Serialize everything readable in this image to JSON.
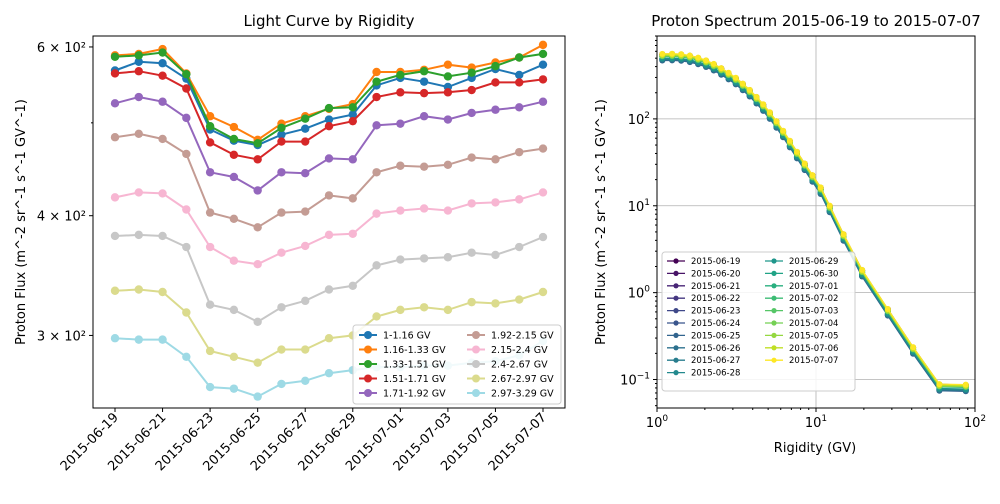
{
  "chart_data": [
    {
      "type": "line",
      "title": "Light Curve by Rigidity",
      "xlabel": "",
      "ylabel": "Proton Flux (m^-2 sr^-1 s^-1 GV^-1)",
      "yscale": "log",
      "ylim": [
        252,
        616
      ],
      "ytick_labels": [
        {
          "value": 300,
          "label": "3 × 10²"
        },
        {
          "value": 400,
          "label": "4 × 10²"
        },
        {
          "value": 600,
          "label": "6 × 10²"
        }
      ],
      "xtick_labels": [
        "2015-06-19",
        "2015-06-21",
        "2015-06-23",
        "2015-06-25",
        "2015-06-27",
        "2015-06-29",
        "2015-07-01",
        "2015-07-03",
        "2015-07-05",
        "2015-07-07"
      ],
      "x": [
        "2015-06-19",
        "2015-06-20",
        "2015-06-21",
        "2015-06-22",
        "2015-06-23",
        "2015-06-24",
        "2015-06-25",
        "2015-06-26",
        "2015-06-27",
        "2015-06-28",
        "2015-06-29",
        "2015-06-30",
        "2015-07-01",
        "2015-07-02",
        "2015-07-03",
        "2015-07-04",
        "2015-07-05",
        "2015-07-06",
        "2015-07-07"
      ],
      "legend": "lower-right",
      "series": [
        {
          "name": "1-1.16 GV",
          "color": "#1f77b4",
          "values": [
            567,
            579,
            577,
            556,
            492,
            479,
            474,
            486,
            493,
            504,
            510,
            547,
            557,
            552,
            545,
            557,
            569,
            561,
            575
          ]
        },
        {
          "name": "1.16-1.33 GV",
          "color": "#ff7f0e",
          "values": [
            588,
            590,
            597,
            563,
            508,
            495,
            480,
            499,
            508,
            517,
            523,
            565,
            565,
            568,
            575,
            571,
            578,
            585,
            603
          ]
        },
        {
          "name": "1.33-1.51 GV",
          "color": "#2ca02c",
          "values": [
            586,
            588,
            592,
            562,
            496,
            481,
            476,
            494,
            505,
            518,
            519,
            552,
            561,
            566,
            559,
            564,
            573,
            585,
            590
          ]
        },
        {
          "name": "1.51-1.71 GV",
          "color": "#d62728",
          "values": [
            563,
            566,
            560,
            543,
            477,
            463,
            458,
            478,
            478,
            496,
            502,
            532,
            538,
            537,
            538,
            541,
            551,
            551,
            555
          ]
        },
        {
          "name": "1.71-1.92 GV",
          "color": "#9467bd",
          "values": [
            524,
            532,
            526,
            506,
            444,
            439,
            425,
            444,
            443,
            459,
            458,
            497,
            499,
            508,
            504,
            512,
            516,
            519,
            526
          ]
        },
        {
          "name": "1.92-2.15 GV",
          "color": "#c49c94",
          "values": [
            483,
            487,
            481,
            464,
            403,
            397,
            389,
            403,
            404,
            420,
            417,
            444,
            451,
            450,
            452,
            460,
            458,
            466,
            470
          ]
        },
        {
          "name": "2.15-2.4 GV",
          "color": "#f7b6d2",
          "values": [
            418,
            423,
            422,
            406,
            371,
            359,
            356,
            366,
            372,
            382,
            383,
            402,
            405,
            407,
            405,
            412,
            413,
            416,
            423
          ]
        },
        {
          "name": "2.4-2.67 GV",
          "color": "#c7c7c7",
          "values": [
            381,
            382,
            381,
            371,
            323,
            319,
            310,
            321,
            326,
            335,
            338,
            355,
            360,
            361,
            362,
            366,
            364,
            371,
            380
          ]
        },
        {
          "name": "2.67-2.97 GV",
          "color": "#dbdb8d",
          "values": [
            334,
            335,
            333,
            317,
            289,
            285,
            281,
            290,
            290,
            298,
            300,
            314,
            319,
            321,
            319,
            325,
            324,
            327,
            333
          ]
        },
        {
          "name": "2.97-3.29 GV",
          "color": "#9edae5",
          "values": [
            298,
            297,
            297,
            285,
            265,
            264,
            259,
            267,
            269,
            274,
            276,
            278,
            278,
            279,
            279,
            281,
            282,
            286,
            296
          ]
        }
      ]
    },
    {
      "type": "line",
      "title": "Proton Spectrum 2015-06-19 to 2015-07-07",
      "xlabel": "Rigidity (GV)",
      "ylabel": "Proton Flux (m^-2 sr^-1 s^-1 GV^-1)",
      "xscale": "log",
      "yscale": "log",
      "xlim": [
        1,
        100
      ],
      "ylim": [
        0.047,
        900
      ],
      "grid": true,
      "xtick_labels": [
        {
          "value": 1,
          "base": "10",
          "exp": "0"
        },
        {
          "value": 10,
          "base": "10",
          "exp": "1"
        },
        {
          "value": 100,
          "base": "10",
          "exp": "2"
        }
      ],
      "ytick_labels": [
        {
          "value": 0.1,
          "base": "10",
          "exp": "−1"
        },
        {
          "value": 1,
          "base": "10",
          "exp": "0"
        },
        {
          "value": 10,
          "base": "10",
          "exp": "1"
        },
        {
          "value": 100,
          "base": "10",
          "exp": "2"
        }
      ],
      "x": [
        1.08,
        1.245,
        1.42,
        1.61,
        1.815,
        2.035,
        2.275,
        2.535,
        2.82,
        3.13,
        3.465,
        3.83,
        4.225,
        4.655,
        5.125,
        5.64,
        6.21,
        6.85,
        7.59,
        8.49,
        9.5,
        10.7,
        12.2,
        14.9,
        19.5,
        28.3,
        40.8,
        59.7,
        87.5
      ],
      "base_values": [
        475,
        477,
        471,
        455,
        430,
        400,
        364,
        326,
        288,
        252,
        216,
        183,
        152,
        125,
        101,
        80,
        62,
        47.5,
        35.5,
        26,
        19.1,
        13.8,
        8.5,
        4.0,
        1.55,
        0.55,
        0.2,
        0.075,
        0.074
      ],
      "legend": "lower-left",
      "legend_ncols": 2,
      "series": [
        {
          "name": "2015-06-19",
          "color": "#440154",
          "scale": 1.16
        },
        {
          "name": "2015-06-20",
          "color": "#481467",
          "scale": 1.17
        },
        {
          "name": "2015-06-21",
          "color": "#482576",
          "scale": 1.17
        },
        {
          "name": "2015-06-22",
          "color": "#453781",
          "scale": 1.11
        },
        {
          "name": "2015-06-23",
          "color": "#3f4889",
          "scale": 1.02
        },
        {
          "name": "2015-06-24",
          "color": "#39558c",
          "scale": 1.0
        },
        {
          "name": "2015-06-25",
          "color": "#32648e",
          "scale": 0.99
        },
        {
          "name": "2015-06-26",
          "color": "#2d718e",
          "scale": 1.01
        },
        {
          "name": "2015-06-27",
          "color": "#287d8e",
          "scale": 1.02
        },
        {
          "name": "2015-06-28",
          "color": "#23898e",
          "scale": 1.04
        },
        {
          "name": "2015-06-29",
          "color": "#1f968b",
          "scale": 1.05
        },
        {
          "name": "2015-06-30",
          "color": "#20a386",
          "scale": 1.1
        },
        {
          "name": "2015-07-01",
          "color": "#29af7f",
          "scale": 1.11
        },
        {
          "name": "2015-07-02",
          "color": "#3dbc74",
          "scale": 1.11
        },
        {
          "name": "2015-07-03",
          "color": "#56c667",
          "scale": 1.11
        },
        {
          "name": "2015-07-04",
          "color": "#75d054",
          "scale": 1.12
        },
        {
          "name": "2015-07-05",
          "color": "#95d840",
          "scale": 1.13
        },
        {
          "name": "2015-07-06",
          "color": "#c0df25",
          "scale": 1.15
        },
        {
          "name": "2015-07-07",
          "color": "#fde725",
          "scale": 1.18
        }
      ]
    }
  ]
}
